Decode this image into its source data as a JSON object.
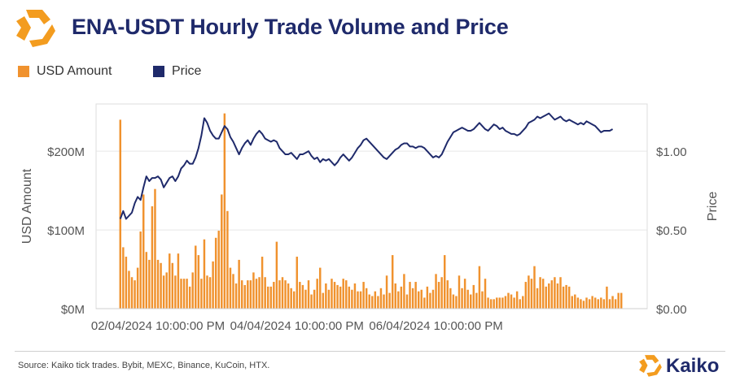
{
  "header": {
    "title": "ENA-USDT Hourly Trade Volume and Price"
  },
  "legend": {
    "items": [
      {
        "label": "USD Amount",
        "color": "#f0922e"
      },
      {
        "label": "Price",
        "color": "#1f2a6b"
      }
    ]
  },
  "footer": {
    "source": "Source: Kaiko  tick trades. Bybit, MEXC, Binance, KuCoin, HTX.",
    "brand": "Kaiko"
  },
  "colors": {
    "bar": "#f0922e",
    "line": "#1f2a6b",
    "title": "#1f2a6b",
    "brand_orange": "#f39c1f"
  },
  "chart_data": {
    "type": "bar+line",
    "title": "ENA-USDT Hourly Trade Volume and Price",
    "ylabel_left": "USD Amount",
    "ylabel_right": "Price",
    "y_left_ticks": [
      "$0M",
      "$100M",
      "$200M"
    ],
    "y_left_range": [
      0,
      260
    ],
    "y_right_ticks": [
      "$0.00",
      "$0.50",
      "$1.00"
    ],
    "y_right_range": [
      0,
      1.3
    ],
    "x_ticks": [
      "02/04/2024 10:00:00 PM",
      "04/04/2024 10:00:00 PM",
      "06/04/2024 10:00:00 PM"
    ],
    "x_tick_index": [
      13,
      61,
      109
    ],
    "grid": "horizontal",
    "series": [
      {
        "name": "USD Amount",
        "kind": "bar",
        "axis": "left",
        "unit": "USD millions",
        "values": [
          240,
          78,
          66,
          48,
          40,
          36,
          52,
          98,
          145,
          72,
          62,
          130,
          152,
          62,
          58,
          42,
          46,
          70,
          58,
          42,
          70,
          38,
          38,
          38,
          28,
          46,
          80,
          68,
          38,
          88,
          42,
          40,
          60,
          90,
          99,
          145,
          248,
          124,
          52,
          44,
          32,
          62,
          36,
          30,
          36,
          36,
          46,
          38,
          40,
          66,
          40,
          28,
          28,
          34,
          85,
          36,
          40,
          36,
          32,
          26,
          22,
          66,
          34,
          30,
          24,
          36,
          18,
          24,
          38,
          52,
          20,
          32,
          24,
          38,
          34,
          30,
          28,
          38,
          36,
          28,
          24,
          32,
          22,
          22,
          34,
          26,
          18,
          16,
          22,
          16,
          26,
          18,
          42,
          20,
          68,
          32,
          22,
          28,
          44,
          18,
          34,
          26,
          34,
          22,
          24,
          14,
          28,
          20,
          24,
          44,
          34,
          40,
          68,
          36,
          26,
          18,
          16,
          42,
          26,
          38,
          24,
          18,
          30,
          20,
          54,
          22,
          38,
          14,
          12,
          12,
          14,
          14,
          14,
          16,
          20,
          18,
          14,
          22,
          12,
          16,
          34,
          42,
          38,
          54,
          26,
          40,
          38,
          28,
          32,
          36,
          40,
          32,
          40,
          28,
          30,
          28,
          16,
          18,
          14,
          12,
          10,
          14,
          12,
          16,
          14,
          12,
          14,
          12,
          28,
          12,
          16,
          12,
          20,
          20
        ]
      },
      {
        "name": "Price",
        "kind": "line",
        "axis": "right",
        "unit": "USD",
        "values": [
          0.57,
          0.62,
          0.57,
          0.59,
          0.61,
          0.67,
          0.71,
          0.69,
          0.77,
          0.84,
          0.81,
          0.83,
          0.83,
          0.84,
          0.82,
          0.77,
          0.8,
          0.83,
          0.84,
          0.81,
          0.84,
          0.89,
          0.91,
          0.94,
          0.92,
          0.92,
          0.96,
          1.02,
          1.1,
          1.21,
          1.18,
          1.13,
          1.1,
          1.08,
          1.08,
          1.12,
          1.16,
          1.14,
          1.09,
          1.06,
          1.02,
          0.98,
          1.02,
          1.05,
          1.07,
          1.04,
          1.08,
          1.11,
          1.13,
          1.11,
          1.08,
          1.07,
          1.06,
          1.07,
          1.06,
          1.02,
          1.0,
          0.98,
          0.98,
          0.99,
          0.97,
          0.95,
          0.98,
          0.98,
          0.99,
          1.0,
          0.97,
          0.95,
          0.96,
          0.93,
          0.95,
          0.94,
          0.95,
          0.93,
          0.91,
          0.93,
          0.96,
          0.98,
          0.96,
          0.94,
          0.96,
          0.99,
          1.02,
          1.04,
          1.07,
          1.08,
          1.06,
          1.04,
          1.02,
          1.0,
          0.98,
          0.96,
          0.95,
          0.97,
          0.99,
          1.01,
          1.02,
          1.04,
          1.05,
          1.05,
          1.03,
          1.03,
          1.02,
          1.03,
          1.03,
          1.02,
          1.0,
          0.98,
          0.96,
          0.97,
          0.96,
          0.98,
          1.02,
          1.06,
          1.09,
          1.12,
          1.13,
          1.14,
          1.15,
          1.14,
          1.13,
          1.13,
          1.14,
          1.16,
          1.18,
          1.16,
          1.14,
          1.13,
          1.15,
          1.17,
          1.16,
          1.14,
          1.15,
          1.13,
          1.12,
          1.11,
          1.11,
          1.1,
          1.11,
          1.13,
          1.15,
          1.18,
          1.19,
          1.2,
          1.22,
          1.21,
          1.22,
          1.23,
          1.24,
          1.22,
          1.2,
          1.21,
          1.22,
          1.2,
          1.19,
          1.2,
          1.19,
          1.18,
          1.17,
          1.18,
          1.17,
          1.19,
          1.18,
          1.17,
          1.16,
          1.14,
          1.12,
          1.13,
          1.13,
          1.13,
          1.14
        ]
      }
    ]
  }
}
